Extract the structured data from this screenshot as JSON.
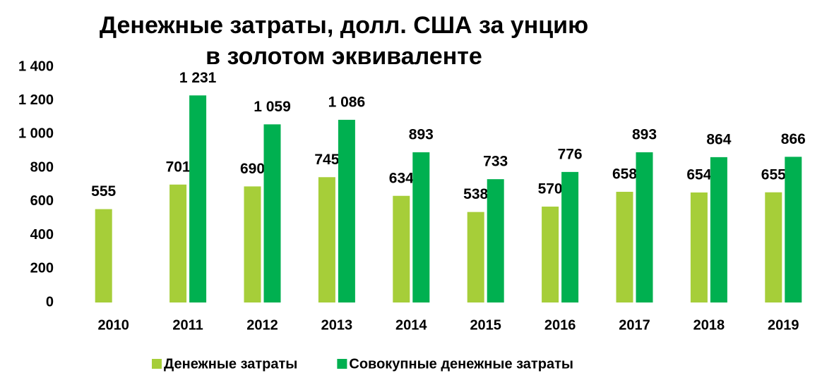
{
  "chart_data": {
    "type": "bar",
    "title": "Денежные затраты, долл. США за унцию в золотом эквиваленте",
    "categories": [
      "2010",
      "2011",
      "2012",
      "2013",
      "2014",
      "2015",
      "2016",
      "2017",
      "2018",
      "2019"
    ],
    "series": [
      {
        "name": "Денежные затраты",
        "color": "#a6ce39",
        "values": [
          555,
          701,
          690,
          745,
          634,
          538,
          570,
          658,
          654,
          655
        ]
      },
      {
        "name": "Совокупные денежные затраты",
        "color": "#00b050",
        "values": [
          null,
          1231,
          1059,
          1086,
          893,
          733,
          776,
          893,
          864,
          866
        ],
        "value_labels": [
          null,
          "1 231",
          "1 059",
          "1 086",
          "893",
          "733",
          "776",
          "893",
          "864",
          "866"
        ]
      }
    ],
    "ylim": [
      0,
      1400
    ],
    "yticks": [
      0,
      200,
      400,
      600,
      800,
      {
        "value": 1000,
        "label": "1 000"
      },
      {
        "value": 1200,
        "label": "1 200"
      },
      {
        "value": 1400,
        "label": "1 400"
      }
    ],
    "grid": false,
    "legend": "bottom"
  }
}
